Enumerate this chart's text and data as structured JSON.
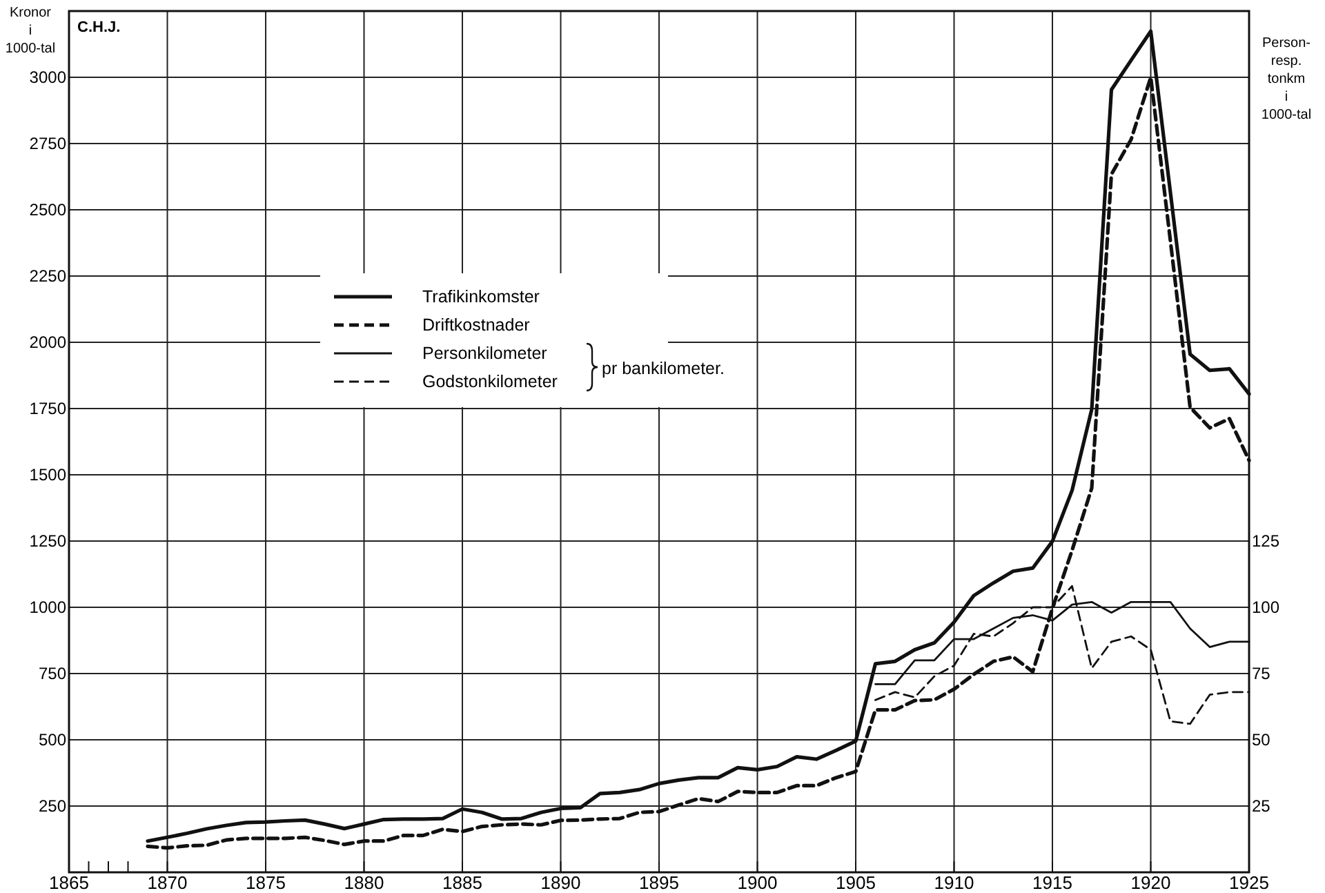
{
  "chart_data": {
    "type": "line",
    "ylabel": "Kronor\ni\n1000-tal",
    "y2label": "Person-\nresp.\ntonkm\ni\n1000-tal",
    "legend_title": "pr bankilometer.",
    "annotations": [
      "C.H.J."
    ],
    "x": [
      1869,
      1870,
      1871,
      1872,
      1873,
      1874,
      1875,
      1876,
      1877,
      1878,
      1879,
      1880,
      1881,
      1882,
      1883,
      1884,
      1885,
      1886,
      1887,
      1888,
      1889,
      1890,
      1891,
      1892,
      1893,
      1894,
      1895,
      1896,
      1897,
      1898,
      1899,
      1900,
      1901,
      1902,
      1903,
      1904,
      1905,
      1906,
      1907,
      1908,
      1909,
      1910,
      1911,
      1912,
      1913,
      1914,
      1915,
      1916,
      1917,
      1918,
      1919,
      1920,
      1921,
      1922,
      1923,
      1924,
      1925
    ],
    "series": [
      {
        "name": "Trafikinkomster",
        "color": "#111111",
        "line_style": "solid",
        "values": [
          118,
          132,
          147,
          164,
          177,
          188,
          190,
          194,
          197,
          182,
          165,
          182,
          199,
          201,
          201,
          203,
          239,
          226,
          201,
          203,
          226,
          241,
          244,
          297,
          301,
          312,
          335,
          348,
          357,
          357,
          395,
          387,
          399,
          436,
          427,
          460,
          495,
          787,
          796,
          840,
          866,
          944,
          1044,
          1092,
          1136,
          1148,
          1249,
          1441,
          1747,
          2953,
          3064,
          3174,
          2565,
          1955,
          1894,
          1900,
          1805
        ]
      },
      {
        "name": "Driftkostnader",
        "color": "#111111",
        "line_style": "dashed",
        "values": [
          98,
          92,
          100,
          102,
          122,
          128,
          128,
          128,
          132,
          120,
          105,
          118,
          118,
          139,
          139,
          162,
          154,
          173,
          179,
          182,
          179,
          196,
          197,
          201,
          203,
          226,
          229,
          254,
          278,
          267,
          305,
          301,
          301,
          327,
          327,
          357,
          380,
          613,
          613,
          648,
          651,
          691,
          747,
          796,
          813,
          757,
          996,
          1215,
          1450,
          2634,
          2765,
          3000,
          2382,
          1755,
          1677,
          1712,
          1554
        ]
      },
      {
        "name": "Personkilometer",
        "color": "#111111",
        "line_style": "solid",
        "axis": "y2",
        "x": [
          1906,
          1907,
          1908,
          1909,
          1910,
          1911,
          1912,
          1913,
          1914,
          1915,
          1916,
          1917,
          1918,
          1919,
          1920,
          1921,
          1922,
          1923,
          1924,
          1925
        ],
        "values": [
          71,
          71,
          80,
          80,
          88,
          88,
          92,
          96,
          97,
          95,
          101,
          102,
          98,
          102,
          102,
          102,
          92,
          85,
          87,
          87
        ]
      },
      {
        "name": "Godstonkilometer",
        "color": "#111111",
        "line_style": "dashed",
        "axis": "y2",
        "x": [
          1906,
          1907,
          1908,
          1909,
          1910,
          1911,
          1912,
          1913,
          1914,
          1915,
          1916,
          1917,
          1918,
          1919,
          1920,
          1921,
          1922,
          1923,
          1924,
          1925
        ],
        "values": [
          65,
          68,
          66,
          74,
          78,
          90,
          89,
          94,
          100,
          100,
          108,
          77,
          87,
          89,
          84,
          57,
          56,
          67,
          68,
          68
        ]
      }
    ],
    "xlim": [
      1865,
      1925
    ],
    "xticks": [
      1865,
      {
        "value": 1866,
        "label": null
      },
      {
        "value": 1867,
        "label": null
      },
      {
        "value": 1868,
        "label": null
      },
      1870,
      1875,
      1880,
      1885,
      1890,
      1895,
      1900,
      1905,
      1910,
      1915,
      1920,
      1925
    ],
    "ylim": [
      0,
      3250
    ],
    "yticks": [
      250,
      500,
      750,
      1000,
      1250,
      1500,
      1750,
      2000,
      2250,
      2500,
      2750,
      3000
    ],
    "y2lim": [
      0,
      325
    ],
    "y2ticks": [
      25,
      50,
      75,
      100,
      125
    ],
    "grid": true,
    "legend": "top left"
  }
}
